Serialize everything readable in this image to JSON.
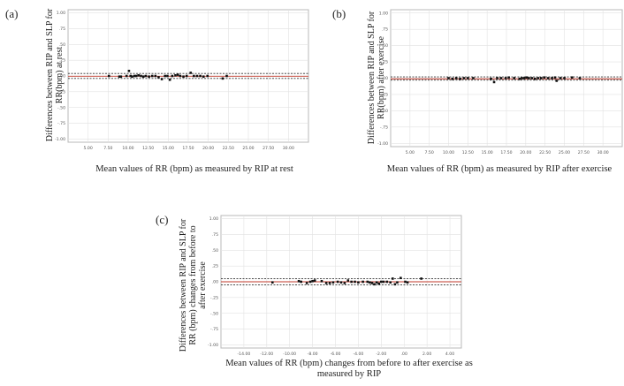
{
  "chart_data": [
    {
      "panel": "(a)",
      "type": "scatter",
      "xlabel": "Mean values of RR (bpm) as measured by RIP at rest",
      "ylabel": "Differences between RIP and SLP for\nRR(bpm) at rest",
      "xlim": [
        2.5,
        32.5
      ],
      "ylim": [
        -1.05,
        1.05
      ],
      "xticks": [
        5,
        7.5,
        10,
        12.5,
        15,
        17.5,
        20,
        22.5,
        25,
        27.5,
        30
      ],
      "xtick_labels": [
        "5.00",
        "7.50",
        "10.00",
        "12.50",
        "15.00",
        "17.50",
        "20.00",
        "22.50",
        "25.00",
        "27.50",
        "30.00"
      ],
      "yticks": [
        1,
        0.75,
        0.5,
        0.25,
        0,
        -0.25,
        -0.5,
        -0.75,
        -1
      ],
      "ytick_labels": [
        "1.00",
        ".75",
        ".50",
        ".25",
        ".00",
        "-.25",
        "-.50",
        "-.75",
        "-1.00"
      ],
      "mean_line": -0.005,
      "loa_upper": 0.04,
      "loa_lower": -0.04,
      "grid": true,
      "points": [
        [
          7.6,
          0
        ],
        [
          8.9,
          -0.01
        ],
        [
          9.1,
          -0.01
        ],
        [
          9.8,
          0
        ],
        [
          10.1,
          0.08
        ],
        [
          10.3,
          0
        ],
        [
          10.5,
          -0.01
        ],
        [
          10.8,
          0
        ],
        [
          11.0,
          0
        ],
        [
          11.3,
          0.01
        ],
        [
          11.6,
          0
        ],
        [
          11.9,
          -0.01
        ],
        [
          12.2,
          0
        ],
        [
          12.6,
          -0.01
        ],
        [
          13.0,
          0
        ],
        [
          13.4,
          0
        ],
        [
          13.8,
          -0.02
        ],
        [
          14.2,
          -0.05
        ],
        [
          14.6,
          0
        ],
        [
          14.9,
          0
        ],
        [
          15.2,
          -0.06
        ],
        [
          15.5,
          0
        ],
        [
          15.9,
          0.01
        ],
        [
          16.2,
          0.02
        ],
        [
          16.5,
          0
        ],
        [
          16.9,
          -0.01
        ],
        [
          17.3,
          0
        ],
        [
          17.8,
          0.05
        ],
        [
          18.2,
          0
        ],
        [
          18.6,
          0
        ],
        [
          19.0,
          0
        ],
        [
          19.4,
          -0.01
        ],
        [
          19.9,
          0
        ],
        [
          21.8,
          -0.04
        ],
        [
          22.3,
          0
        ]
      ]
    },
    {
      "panel": "(b)",
      "type": "scatter",
      "xlabel": "Mean values of RR (bpm) as measured by RIP after exercise",
      "ylabel": "Differences between RIP and SLP for\nRR(bpm) after exercise",
      "xlim": [
        2.5,
        32.5
      ],
      "ylim": [
        -1.05,
        1.05
      ],
      "xticks": [
        5,
        7.5,
        10,
        12.5,
        15,
        17.5,
        20,
        22.5,
        25,
        27.5,
        30
      ],
      "xtick_labels": [
        "5.00",
        "7.50",
        "10.00",
        "12.50",
        "15.00",
        "17.50",
        "20.00",
        "22.50",
        "25.00",
        "27.50",
        "30.00"
      ],
      "yticks": [
        1,
        0.75,
        0.5,
        0.25,
        0,
        -0.25,
        -0.5,
        -0.75,
        -1
      ],
      "ytick_labels": [
        "1.00",
        ".75",
        ".50",
        ".25",
        ".00",
        "-.25",
        "-.50",
        "-.75",
        "-1.00"
      ],
      "mean_line": -0.01,
      "loa_upper": 0.02,
      "loa_lower": -0.03,
      "grid": true,
      "points": [
        [
          10.0,
          0
        ],
        [
          10.5,
          -0.01
        ],
        [
          11.0,
          0
        ],
        [
          11.5,
          -0.01
        ],
        [
          12.0,
          0
        ],
        [
          12.5,
          0
        ],
        [
          13.2,
          0
        ],
        [
          15.5,
          -0.01
        ],
        [
          15.9,
          -0.06
        ],
        [
          16.3,
          0
        ],
        [
          16.8,
          0
        ],
        [
          17.4,
          0
        ],
        [
          17.8,
          0.01
        ],
        [
          18.5,
          0
        ],
        [
          19.2,
          -0.01
        ],
        [
          19.5,
          0
        ],
        [
          19.8,
          0
        ],
        [
          20.1,
          0.01
        ],
        [
          20.4,
          0
        ],
        [
          20.8,
          0
        ],
        [
          21.2,
          -0.01
        ],
        [
          21.6,
          0
        ],
        [
          22.0,
          0
        ],
        [
          22.4,
          0.01
        ],
        [
          22.9,
          0
        ],
        [
          23.4,
          0
        ],
        [
          23.8,
          0.01
        ],
        [
          24.0,
          -0.04
        ],
        [
          24.5,
          0
        ],
        [
          25.0,
          0
        ],
        [
          26.0,
          0.01
        ],
        [
          27.0,
          0
        ]
      ]
    },
    {
      "panel": "(c)",
      "type": "scatter",
      "xlabel": "Mean values of RR (bpm) changes from before to after exercise as measured by RIP",
      "ylabel": "Differences between RIP and SLP for\nRR (bpm) changes from before to\nafter exercise",
      "xlim": [
        -16,
        5
      ],
      "ylim": [
        -1.05,
        1.05
      ],
      "xticks": [
        -14,
        -12,
        -10,
        -8,
        -6,
        -4,
        -2,
        0,
        2,
        4
      ],
      "xtick_labels": [
        "-14.00",
        "-12.00",
        "-10.00",
        "-8.00",
        "-6.00",
        "-4.00",
        "-2.00",
        ".00",
        "2.00",
        "4.00"
      ],
      "yticks": [
        1,
        0.75,
        0.5,
        0.25,
        0,
        -0.25,
        -0.5,
        -0.75,
        -1
      ],
      "ytick_labels": [
        "1.00",
        ".75",
        ".50",
        ".25",
        ".00",
        "-.25",
        "-.50",
        "-.75",
        "-1.00"
      ],
      "mean_line": 0,
      "loa_upper": 0.05,
      "loa_lower": -0.05,
      "grid": true,
      "points": [
        [
          -11.5,
          -0.01
        ],
        [
          -9.2,
          0.01
        ],
        [
          -9.0,
          0
        ],
        [
          -8.5,
          -0.02
        ],
        [
          -8.2,
          0
        ],
        [
          -8.0,
          0.01
        ],
        [
          -7.8,
          0.02
        ],
        [
          -7.2,
          0.01
        ],
        [
          -6.8,
          -0.02
        ],
        [
          -6.5,
          -0.02
        ],
        [
          -6.2,
          -0.01
        ],
        [
          -5.8,
          0
        ],
        [
          -5.5,
          -0.01
        ],
        [
          -5.2,
          -0.02
        ],
        [
          -4.9,
          0.02
        ],
        [
          -4.6,
          0
        ],
        [
          -4.3,
          0
        ],
        [
          -4.0,
          -0.01
        ],
        [
          -3.6,
          0
        ],
        [
          -3.2,
          0
        ],
        [
          -3.0,
          -0.01
        ],
        [
          -2.8,
          -0.02
        ],
        [
          -2.6,
          -0.04
        ],
        [
          -2.4,
          -0.01
        ],
        [
          -2.2,
          -0.03
        ],
        [
          -2.0,
          0
        ],
        [
          -1.8,
          0
        ],
        [
          -1.5,
          0
        ],
        [
          -1.2,
          -0.01
        ],
        [
          -1.0,
          0.05
        ],
        [
          -0.8,
          -0.04
        ],
        [
          -0.6,
          -0.01
        ],
        [
          -0.3,
          0.06
        ],
        [
          0.1,
          0
        ],
        [
          0.3,
          -0.01
        ],
        [
          1.5,
          0.05
        ]
      ]
    }
  ]
}
